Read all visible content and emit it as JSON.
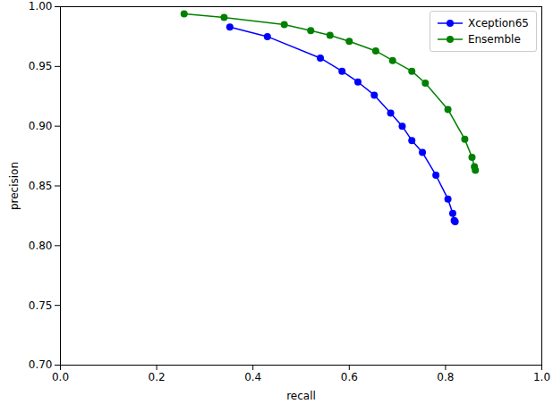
{
  "chart_data": {
    "type": "line",
    "x_label": "recall",
    "y_label": "precision",
    "xlim": [
      0.0,
      1.0
    ],
    "xticks": [
      {
        "value": 0.0,
        "label": "0.0"
      },
      0.2,
      0.4,
      0.6,
      0.8,
      {
        "value": 1.0,
        "label": "1.0"
      }
    ],
    "ylim": [
      0.7,
      1.0
    ],
    "yticks": [
      {
        "value": 0.7,
        "label": "0.70"
      },
      0.75,
      {
        "value": 0.8,
        "label": "0.80"
      },
      0.85,
      {
        "value": 0.9,
        "label": "0.90"
      },
      0.95,
      {
        "value": 1.0,
        "label": "1.00"
      }
    ],
    "grid": false,
    "legend": "upper right",
    "series": [
      {
        "name": "Xception65",
        "color": "#0000ff",
        "marker": "circle",
        "line_style": "solid",
        "x": [
          0.352,
          0.43,
          0.54,
          0.585,
          0.618,
          0.652,
          0.686,
          0.71,
          0.73,
          0.752,
          0.78,
          0.805,
          0.815,
          0.818,
          0.82
        ],
        "values": [
          0.983,
          0.975,
          0.957,
          0.946,
          0.937,
          0.926,
          0.911,
          0.9,
          0.888,
          0.878,
          0.859,
          0.839,
          0.827,
          0.821,
          0.82
        ]
      },
      {
        "name": "Ensemble",
        "color": "#008000",
        "marker": "circle",
        "line_style": "solid",
        "x": [
          0.257,
          0.34,
          0.465,
          0.52,
          0.56,
          0.6,
          0.655,
          0.69,
          0.73,
          0.758,
          0.805,
          0.84,
          0.855,
          0.86,
          0.862
        ],
        "values": [
          0.994,
          0.991,
          0.985,
          0.98,
          0.976,
          0.971,
          0.963,
          0.955,
          0.946,
          0.936,
          0.914,
          0.889,
          0.874,
          0.866,
          0.863
        ]
      }
    ]
  }
}
